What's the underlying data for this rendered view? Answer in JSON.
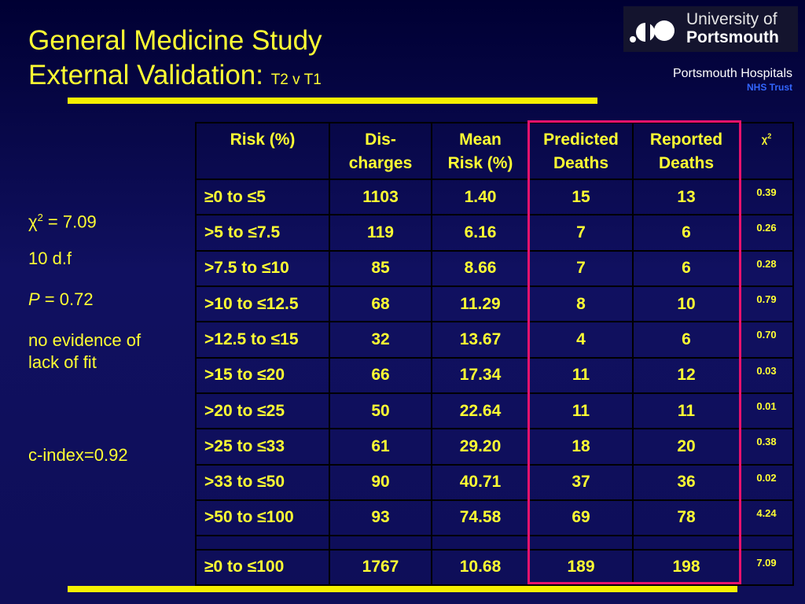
{
  "title": {
    "line1": "General Medicine Study",
    "line2_main": "External Validation: ",
    "line2_small": "T2 v T1"
  },
  "logo": {
    "line1": "University of",
    "line2": "Portsmouth"
  },
  "hospital": {
    "name": "Portsmouth Hospitals",
    "trust": "NHS Trust"
  },
  "stats": {
    "chi_symbol": "χ",
    "chi_sup": "2",
    "chi_value": " = 7.09",
    "df": "10 d.f",
    "p_label": "P",
    "p_value": " = 0.72",
    "fit_line1": "no evidence of",
    "fit_line2": "lack of fit",
    "cindex": "c-index=0.92"
  },
  "table": {
    "headers": {
      "risk": "Risk (%)",
      "dis1": "Dis-",
      "dis2": "charges",
      "mean1": "Mean",
      "mean2": "Risk (%)",
      "pred1": "Predicted",
      "pred2": "Deaths",
      "rep1": "Reported",
      "rep2": "Deaths",
      "chi": "χ",
      "chi_sup": "2"
    },
    "rows": [
      {
        "risk": "≥0 to ≤5",
        "discharges": "1103",
        "mean_risk": "1.40",
        "predicted": "15",
        "reported": "13",
        "chi2": "0.39"
      },
      {
        "risk": ">5 to ≤7.5",
        "discharges": "119",
        "mean_risk": "6.16",
        "predicted": "7",
        "reported": "6",
        "chi2": "0.26"
      },
      {
        "risk": ">7.5 to ≤10",
        "discharges": "85",
        "mean_risk": "8.66",
        "predicted": "7",
        "reported": "6",
        "chi2": "0.28"
      },
      {
        "risk": ">10 to ≤12.5",
        "discharges": "68",
        "mean_risk": "11.29",
        "predicted": "8",
        "reported": "10",
        "chi2": "0.79"
      },
      {
        "risk": ">12.5 to ≤15",
        "discharges": "32",
        "mean_risk": "13.67",
        "predicted": "4",
        "reported": "6",
        "chi2": "0.70"
      },
      {
        "risk": ">15 to ≤20",
        "discharges": "66",
        "mean_risk": "17.34",
        "predicted": "11",
        "reported": "12",
        "chi2": "0.03"
      },
      {
        "risk": ">20 to ≤25",
        "discharges": "50",
        "mean_risk": "22.64",
        "predicted": "11",
        "reported": "11",
        "chi2": "0.01"
      },
      {
        "risk": ">25 to ≤33",
        "discharges": "61",
        "mean_risk": "29.20",
        "predicted": "18",
        "reported": "20",
        "chi2": "0.38"
      },
      {
        "risk": ">33 to ≤50",
        "discharges": "90",
        "mean_risk": "40.71",
        "predicted": "37",
        "reported": "36",
        "chi2": "0.02"
      },
      {
        "risk": ">50 to ≤100",
        "discharges": "93",
        "mean_risk": "74.58",
        "predicted": "69",
        "reported": "78",
        "chi2": "4.24"
      },
      {
        "risk": "",
        "discharges": "",
        "mean_risk": "",
        "predicted": "",
        "reported": "",
        "chi2": ""
      },
      {
        "risk": "≥0 to ≤100",
        "discharges": "1767",
        "mean_risk": "10.68",
        "predicted": "189",
        "reported": "198",
        "chi2": "7.09"
      }
    ]
  },
  "colors": {
    "accent_yellow": "#ffff33",
    "highlight_pink": "#e8126c",
    "nhs_blue": "#3366ff",
    "background": "#101060"
  }
}
